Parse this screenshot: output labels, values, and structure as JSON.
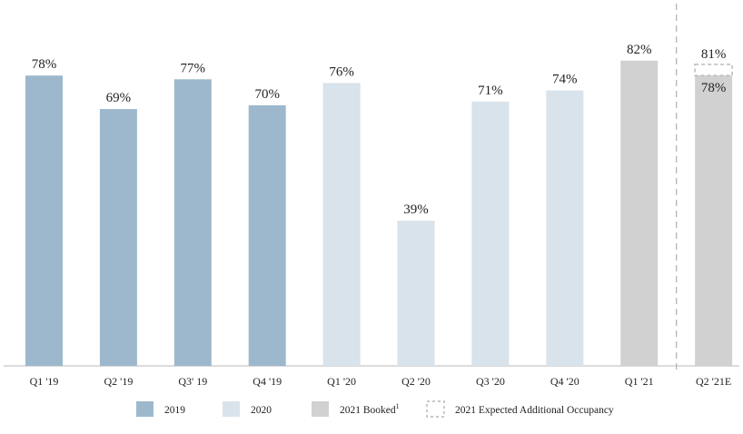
{
  "chart_data": {
    "type": "bar",
    "title": "",
    "xlabel": "",
    "ylabel": "",
    "ylim": [
      0,
      85
    ],
    "grid": false,
    "legend_position": "bottom-center",
    "categories": [
      "Q1 '19",
      "Q2 '19",
      "Q3' 19",
      "Q4 '19",
      "Q1 '20",
      "Q2 '20",
      "Q3 '20",
      "Q4 '20",
      "Q1 '21",
      "Q2 '21E"
    ],
    "values": [
      78,
      69,
      77,
      70,
      76,
      39,
      71,
      74,
      82,
      78
    ],
    "value_labels": [
      "78%",
      "69%",
      "77%",
      "70%",
      "76%",
      "39%",
      "71%",
      "74%",
      "82%",
      "78%"
    ],
    "bar_series": [
      "2019",
      "2019",
      "2019",
      "2019",
      "2020",
      "2020",
      "2020",
      "2020",
      "2021 Booked",
      "2021 Booked"
    ],
    "expected_additional": {
      "category": "Q2 '21E",
      "total": 81,
      "total_label": "81%",
      "series": "2021 Expected Additional Occupancy"
    },
    "series": [
      {
        "name": "2019",
        "color": "#9db8cc"
      },
      {
        "name": "2020",
        "color": "#d9e3eb"
      },
      {
        "name": "2021 Booked",
        "color": "#d1d1d1",
        "superscript": "1"
      },
      {
        "name": "2021 Expected Additional Occupancy",
        "color": "#ffffff",
        "dashed": true
      }
    ],
    "divider_before": "Q2 '21E"
  }
}
